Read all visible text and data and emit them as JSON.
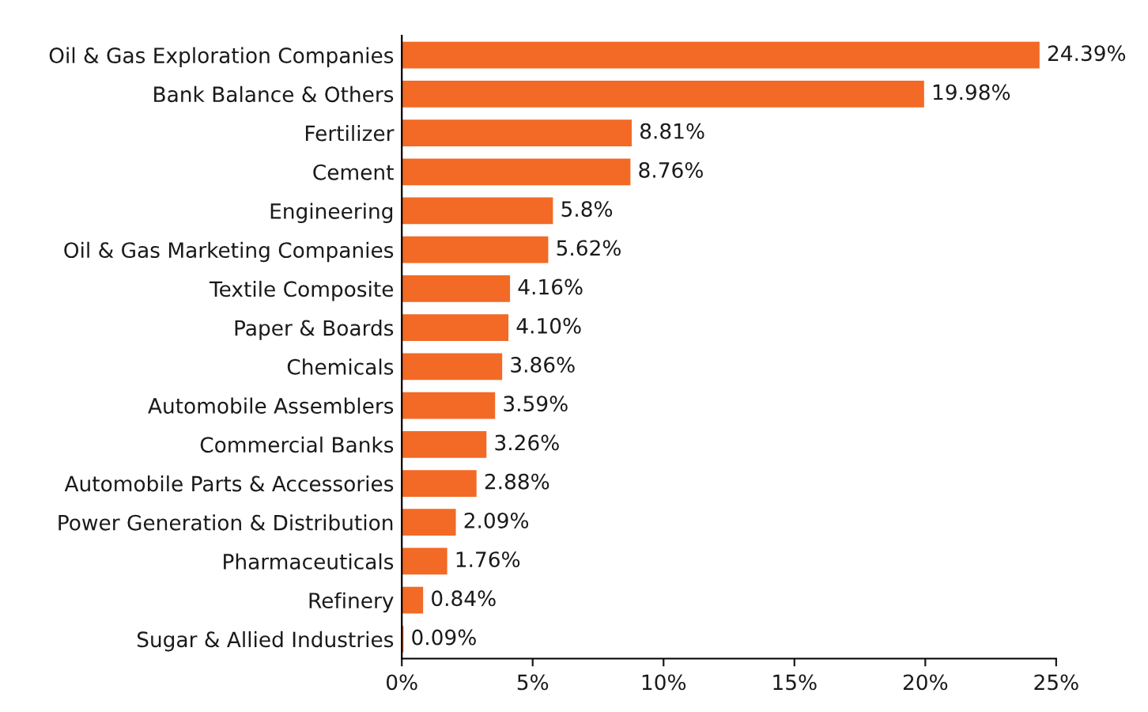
{
  "chart_data": {
    "type": "bar",
    "orientation": "horizontal",
    "categories": [
      "Oil & Gas Exploration Companies",
      "Bank Balance & Others",
      "Fertilizer",
      "Cement",
      "Engineering",
      "Oil & Gas Marketing Companies",
      "Textile Composite",
      "Paper & Boards",
      "Chemicals",
      "Automobile Assemblers",
      "Commercial Banks",
      "Automobile Parts & Accessories",
      "Power Generation & Distribution",
      "Pharmaceuticals",
      "Refinery",
      "Sugar & Allied Industries"
    ],
    "values": [
      24.39,
      19.98,
      8.81,
      8.76,
      5.8,
      5.62,
      4.16,
      4.1,
      3.86,
      3.59,
      3.26,
      2.88,
      2.09,
      1.76,
      0.84,
      0.09
    ],
    "value_labels": [
      "24.39%",
      "19.98%",
      "8.81%",
      "8.76%",
      "5.8%",
      "5.62%",
      "4.16%",
      "4.10%",
      "3.86%",
      "3.59%",
      "3.26%",
      "2.88%",
      "2.09%",
      "1.76%",
      "0.84%",
      "0.09%"
    ],
    "color": "#f26a25",
    "xlim": [
      0,
      25
    ],
    "xticks": [
      {
        "value": 0,
        "label": "0%"
      },
      {
        "value": 5,
        "label": "5%"
      },
      {
        "value": 10,
        "label": "10%"
      },
      {
        "value": 15,
        "label": "15%"
      },
      {
        "value": 20,
        "label": "20%"
      },
      {
        "value": 25,
        "label": "25%"
      }
    ],
    "grid": false,
    "legend": false
  }
}
